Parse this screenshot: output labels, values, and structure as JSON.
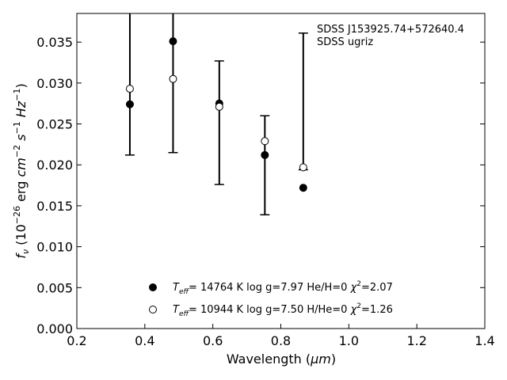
{
  "chart_data": {
    "type": "scatter",
    "title": "",
    "xlabel_text": "Wavelength (",
    "xlabel_unit": "μm",
    "xlabel_close": ")",
    "ylabel": {
      "f": "f",
      "nu": "ν",
      "open": " (10",
      "exp1": "−26",
      "erg": " erg ",
      "cm": "cm",
      "exp2": "−2",
      "s": " s",
      "exp3": "−1",
      "hz": " Hz",
      "exp4": "−1",
      "close": ")"
    },
    "xlim": [
      0.2,
      1.4
    ],
    "ylim": [
      0.0,
      0.0385
    ],
    "grid": false,
    "xticks": [
      {
        "value": 0.2,
        "label": "0.2"
      },
      {
        "value": 0.4,
        "label": "0.4"
      },
      {
        "value": 0.6,
        "label": "0.6"
      },
      {
        "value": 0.8,
        "label": "0.8"
      },
      {
        "value": 1.0,
        "label": "1.0"
      },
      {
        "value": 1.2,
        "label": "1.2"
      },
      {
        "value": 1.4,
        "label": "1.4"
      }
    ],
    "yticks": [
      {
        "value": 0.0,
        "label": "0.000"
      },
      {
        "value": 0.005,
        "label": "0.005"
      },
      {
        "value": 0.01,
        "label": "0.010"
      },
      {
        "value": 0.015,
        "label": "0.015"
      },
      {
        "value": 0.02,
        "label": "0.020"
      },
      {
        "value": 0.025,
        "label": "0.025"
      },
      {
        "value": 0.03,
        "label": "0.030"
      },
      {
        "value": 0.035,
        "label": "0.035"
      }
    ],
    "annotation": [
      "SDSS J153925.74+572640.4",
      "SDSS ugriz"
    ],
    "errorbars": [
      {
        "x": 0.356,
        "ylow": 0.0212,
        "yhigh": 0.0385
      },
      {
        "x": 0.483,
        "ylow": 0.0215,
        "yhigh": 0.0385
      },
      {
        "x": 0.619,
        "ylow": 0.0176,
        "yhigh": 0.0327
      },
      {
        "x": 0.753,
        "ylow": 0.0139,
        "yhigh": 0.026
      },
      {
        "x": 0.866,
        "ylow": 0.0194,
        "yhigh": 0.0361
      }
    ],
    "series": [
      {
        "marker": "filled",
        "x": [
          0.356,
          0.483,
          0.619,
          0.753,
          0.866
        ],
        "y": [
          0.0274,
          0.0351,
          0.0275,
          0.0212,
          0.0172
        ],
        "legend": {
          "T": "T",
          "sub": "eff",
          "text1": "= 14764 K  log g=7.97  He/H=0  ",
          "chi": "χ",
          "sup": "2",
          "text2": "=2.07"
        }
      },
      {
        "marker": "open",
        "x": [
          0.356,
          0.483,
          0.619,
          0.753,
          0.866
        ],
        "y": [
          0.0293,
          0.0305,
          0.0271,
          0.0229,
          0.0197
        ],
        "legend": {
          "T": "T",
          "sub": "eff",
          "text1": "= 10944 K  log g=7.50  H/He=0  ",
          "chi": "χ",
          "sup": "2",
          "text2": "=1.26"
        }
      }
    ]
  }
}
